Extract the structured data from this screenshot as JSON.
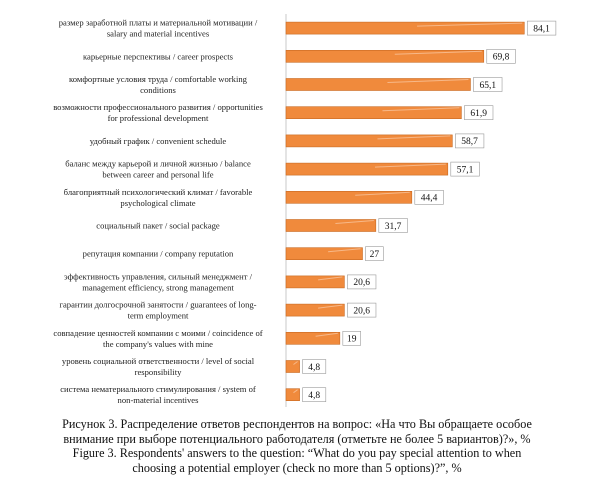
{
  "chart_data": {
    "type": "bar",
    "orientation": "horizontal",
    "categories": [
      [
        "размер заработной платы и материальной мотивации /",
        "salary and material incentives"
      ],
      [
        "карьерные перспективы / career prospects"
      ],
      [
        "комфортные условия труда / comfortable working",
        "conditions"
      ],
      [
        "возможности профессионального развития / opportunities",
        "for professional development"
      ],
      [
        "удобный график / convenient schedule"
      ],
      [
        "баланс между карьерой и личной жизнью / balance",
        "between career and personal life"
      ],
      [
        "благоприятный психологический климат / favorable",
        "psychological climate"
      ],
      [
        "социальный пакет / social package"
      ],
      [
        "репутация компании / company reputation"
      ],
      [
        "эффективность управления, сильный менеджмент /",
        "management efficiency, strong management"
      ],
      [
        "гарантии долгосрочной занятости / guarantees of long-",
        "term employment"
      ],
      [
        "совпадение ценностей компании с моими / coincidence of",
        "the company's values with mine"
      ],
      [
        "уровень социальной ответственности / level of social",
        "responsibility"
      ],
      [
        "система нематериального стимулирования / system of",
        "non-material incentives"
      ]
    ],
    "values": [
      84.1,
      69.8,
      65.1,
      61.9,
      58.7,
      57.1,
      44.4,
      31.7,
      27,
      20.6,
      20.6,
      19,
      4.8,
      4.8
    ],
    "value_labels": [
      "84,1",
      "69,8",
      "65,1",
      "61,9",
      "58,7",
      "57,1",
      "44,4",
      "31,7",
      "27",
      "20,6",
      "20,6",
      "19",
      "4,8",
      "4,8"
    ],
    "xlim": [
      0,
      90
    ],
    "grid": false,
    "legend": "none",
    "title": "",
    "xlabel": "",
    "ylabel": "",
    "colors": {
      "bar_fill": "#f08a3c",
      "bar_stroke": "#c96a22",
      "bar_highlight": "#f7b888"
    }
  },
  "caption": {
    "ru_line1": "Рисунок 3. Распределение ответов респондентов на вопрос: «На что Вы обращаете особое",
    "ru_line2": "внимание при выборе потенциального работодателя (отметьте не более 5 вариантов)?», %",
    "en_line1": "Figure 3. Respondents' answers to the question: “What do you pay special attention to when",
    "en_line2": "choosing a potential employer (check no more than 5 options)?”, %"
  }
}
